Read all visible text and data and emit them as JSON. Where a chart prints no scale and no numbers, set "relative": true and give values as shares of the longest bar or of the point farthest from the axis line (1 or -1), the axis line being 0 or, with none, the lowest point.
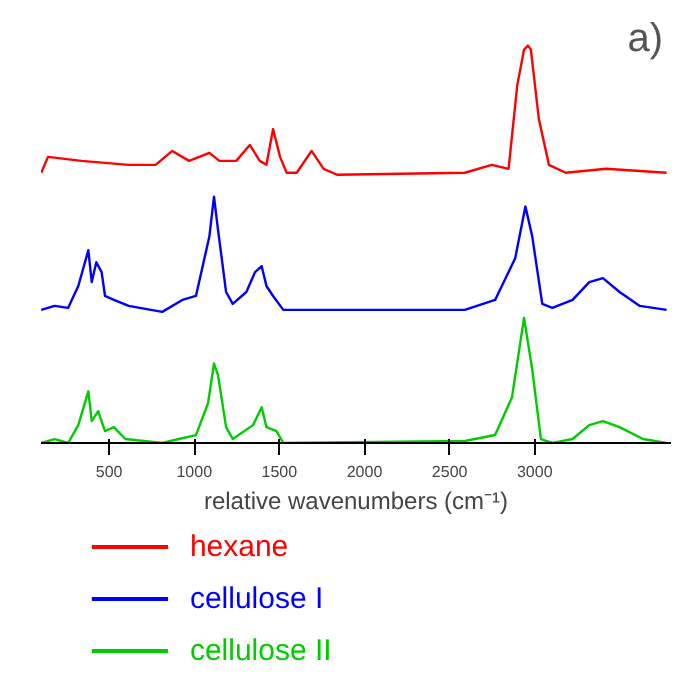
{
  "chart_data": {
    "type": "line",
    "relative": true,
    "xlabel": "relative wavenumbers (cm⁻¹)",
    "xlim": [
      100,
      3800
    ],
    "xticks": [
      500,
      1000,
      1500,
      2000,
      2500,
      3000
    ],
    "tick_labels": "x",
    "legend": "bottom",
    "line_style": "solid",
    "annotations": [
      "a)"
    ],
    "series": [
      {
        "name": "hexane",
        "color": "#ff0000",
        "x": [
          101,
          141,
          338,
          615,
          773,
          871,
          970,
          1089,
          1148,
          1247,
          1326,
          1385,
          1424,
          1463,
          1504,
          1543,
          1602,
          1689,
          1760,
          1839,
          2589,
          2748,
          2846,
          2897,
          2937,
          2960,
          2977,
          3024,
          3083,
          3182,
          3419,
          3774
        ],
        "values": [
          0.68,
          0.72,
          0.71,
          0.7,
          0.7,
          0.735,
          0.71,
          0.73,
          0.71,
          0.71,
          0.75,
          0.71,
          0.7,
          0.79,
          0.72,
          0.68,
          0.68,
          0.735,
          0.69,
          0.675,
          0.68,
          0.7,
          0.69,
          0.9,
          0.99,
          1.0,
          0.99,
          0.815,
          0.7,
          0.68,
          0.69,
          0.68
        ]
      },
      {
        "name": "cellulose I",
        "color": "#0000ff",
        "x": [
          101,
          180,
          259,
          319,
          378,
          398,
          425,
          456,
          476,
          528,
          615,
          812,
          930,
          1010,
          1089,
          1116,
          1140,
          1187,
          1226,
          1306,
          1357,
          1396,
          1424,
          1463,
          1523,
          2589,
          2767,
          2885,
          2945,
          2985,
          3044,
          3103,
          3222,
          3320,
          3400,
          3498,
          3617,
          3774
        ],
        "values": [
          0.335,
          0.345,
          0.34,
          0.395,
          0.485,
          0.405,
          0.455,
          0.43,
          0.37,
          0.36,
          0.345,
          0.33,
          0.36,
          0.37,
          0.52,
          0.62,
          0.535,
          0.38,
          0.35,
          0.38,
          0.43,
          0.445,
          0.395,
          0.37,
          0.335,
          0.335,
          0.36,
          0.465,
          0.595,
          0.52,
          0.35,
          0.34,
          0.36,
          0.405,
          0.415,
          0.38,
          0.345,
          0.335
        ]
      },
      {
        "name": "cellulose II",
        "color": "#00cc00",
        "x": [
          101,
          180,
          259,
          319,
          378,
          398,
          436,
          476,
          528,
          595,
          812,
          910,
          1010,
          1081,
          1116,
          1140,
          1187,
          1226,
          1345,
          1396,
          1424,
          1483,
          1523,
          2589,
          2767,
          2866,
          2937,
          2985,
          3036,
          3103,
          3222,
          3320,
          3400,
          3498,
          3636,
          3774
        ],
        "values": [
          0.0,
          0.01,
          0.0,
          0.045,
          0.13,
          0.055,
          0.08,
          0.03,
          0.04,
          0.01,
          0.0,
          0.01,
          0.02,
          0.1,
          0.2,
          0.17,
          0.04,
          0.01,
          0.045,
          0.09,
          0.04,
          0.03,
          0.0,
          0.005,
          0.02,
          0.115,
          0.315,
          0.185,
          0.01,
          0.0,
          0.01,
          0.045,
          0.055,
          0.04,
          0.01,
          0.0
        ]
      }
    ]
  }
}
